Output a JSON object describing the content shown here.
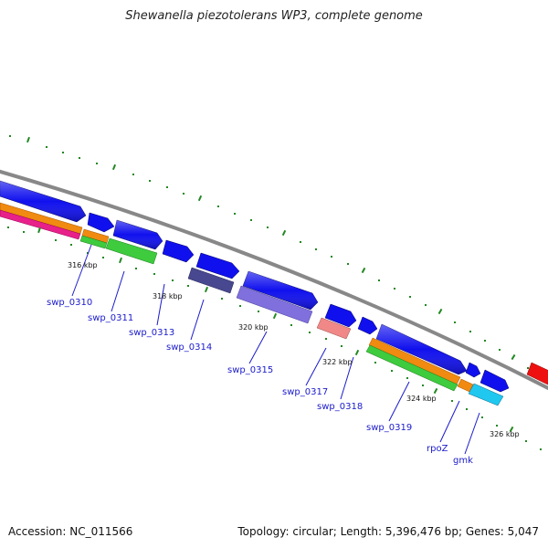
{
  "title": "Shewanella piezotolerans WP3, complete genome",
  "footer": {
    "accession": "Accession: NC_011566",
    "summary": "Topology: circular; Length: 5,396,476 bp; Genes: 5,047"
  },
  "kbp_labels": [
    "316 kbp",
    "318 kbp",
    "320 kbp",
    "322 kbp",
    "324 kbp",
    "326 kbp"
  ],
  "gene_labels": [
    "swp_0310",
    "swp_0311",
    "swp_0313",
    "swp_0314",
    "swp_0315",
    "swp_0317",
    "swp_0318",
    "swp_0319",
    "rpoZ",
    "gmk"
  ],
  "colors": {
    "backbone": "#888888",
    "cds_forward": "#1010ee",
    "cog_orange": "#f08a10",
    "cog_pink": "#e8208a",
    "cog_green": "#3ecb3e",
    "cog_dark_slate": "#484890",
    "cog_lavender": "#8070dd",
    "cog_salmon": "#f08888",
    "cog_cyan": "#20c8f0",
    "cog_red": "#ee1010",
    "tick": "#228822",
    "label": "#1a1acc"
  }
}
